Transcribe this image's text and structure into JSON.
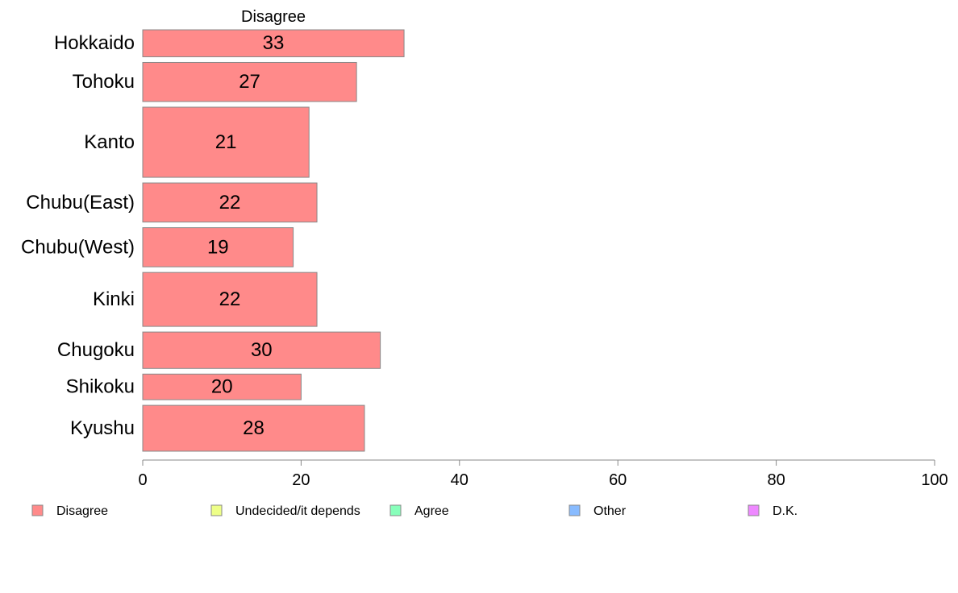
{
  "chart_data": {
    "type": "bar",
    "orientation": "horizontal",
    "stacked": true,
    "column_header": "Disagree",
    "categories": [
      "Hokkaido",
      "Tohoku",
      "Kanto",
      "Chubu(East)",
      "Chubu(West)",
      "Kinki",
      "Chugoku",
      "Shikoku",
      "Kyushu"
    ],
    "relative_widths": [
      1.0,
      1.45,
      2.6,
      1.45,
      1.45,
      2.0,
      1.35,
      0.95,
      1.7
    ],
    "series": [
      {
        "name": "Disagree",
        "values": [
          33,
          27,
          21,
          22,
          19,
          22,
          30,
          20,
          28
        ],
        "value_labels": [
          "33",
          "27",
          "21",
          "22",
          "19",
          "22",
          "30",
          "20",
          "28"
        ]
      }
    ],
    "legend": [
      {
        "name": "Disagree",
        "color": "#ff8a8a"
      },
      {
        "name": "Undecided/it depends",
        "color": "#eeff88"
      },
      {
        "name": "Agree",
        "color": "#88ffbb"
      },
      {
        "name": "Other",
        "color": "#88bbff"
      },
      {
        "name": "D.K.",
        "color": "#ee88ff"
      }
    ],
    "xlim": [
      0,
      100
    ],
    "xticks": [
      0,
      20,
      40,
      60,
      80,
      100
    ],
    "xtick_labels": [
      "0",
      "20",
      "40",
      "60",
      "80",
      "100"
    ],
    "legend_position": "bottom",
    "grid": false,
    "colors": {
      "bar_stroke": "#888888",
      "axis": "#888888"
    }
  }
}
